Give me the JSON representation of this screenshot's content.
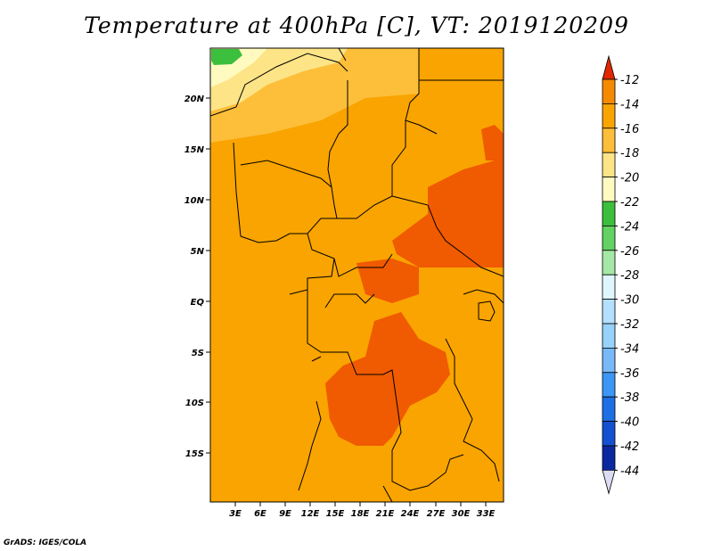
{
  "map": {
    "title": "Temperature at 400hPa [C], VT: 2019120209",
    "lat_labels": [
      "20N",
      "15N",
      "10N",
      "5N",
      "EQ",
      "5S",
      "10S",
      "15S"
    ],
    "lon_labels": [
      "3E",
      "6E",
      "9E",
      "12E",
      "15E",
      "18E",
      "21E",
      "24E",
      "27E",
      "30E",
      "33E"
    ]
  },
  "colorbar": {
    "labels": [
      "-12",
      "-14",
      "-16",
      "-18",
      "-20",
      "-22",
      "-24",
      "-26",
      "-28",
      "-30",
      "-32",
      "-34",
      "-36",
      "-38",
      "-40",
      "-42",
      "-44"
    ],
    "colors": [
      "#f05a00",
      "#f58a00",
      "#f9a400",
      "#fdbf3a",
      "#fde486",
      "#fffbc0",
      "#3cbf3c",
      "#62d262",
      "#a5e8a5",
      "#e0f6ff",
      "#b4e0ff",
      "#96d2fa",
      "#78b9fa",
      "#3c96f5",
      "#1e6ee6",
      "#1450d2",
      "#0a28a0",
      "#000a64"
    ],
    "top_arrow_color": "#e02800",
    "bottom_arrow_color": "#dcdcf5"
  },
  "footer": {
    "credit": "GrADS: IGES/COLA"
  }
}
